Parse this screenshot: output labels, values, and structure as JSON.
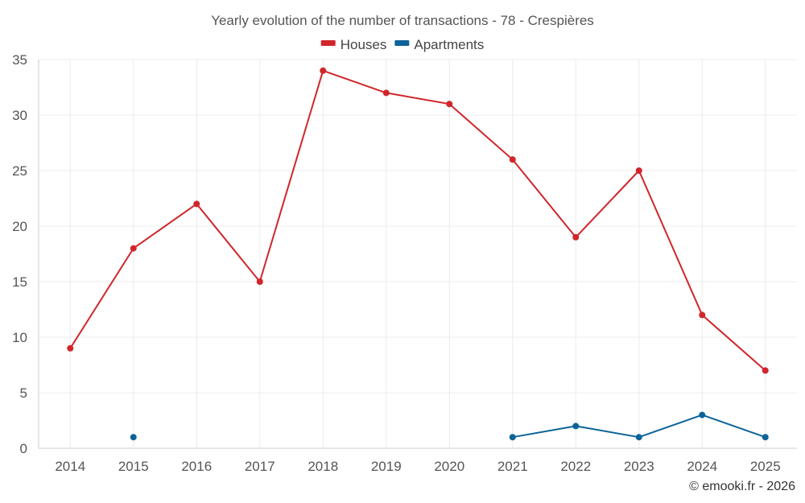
{
  "chart_data": {
    "type": "line",
    "title": "Yearly evolution of the number of transactions - 78 - Crespières",
    "categories": [
      "2014",
      "2015",
      "2016",
      "2017",
      "2018",
      "2019",
      "2020",
      "2021",
      "2022",
      "2023",
      "2024",
      "2025"
    ],
    "series": [
      {
        "name": "Houses",
        "color": "#d0262b",
        "values": [
          9,
          18,
          22,
          15,
          34,
          32,
          31,
          26,
          19,
          25,
          12,
          7
        ]
      },
      {
        "name": "Apartments",
        "color": "#0c6399",
        "values": [
          null,
          1,
          null,
          null,
          null,
          null,
          null,
          1,
          2,
          1,
          3,
          1
        ]
      }
    ],
    "ylim": [
      0,
      35
    ],
    "yticks": [
      0,
      5,
      10,
      15,
      20,
      25,
      30,
      35
    ],
    "xlabel": "",
    "ylabel": "",
    "grid": true,
    "legend_position": "top-center"
  },
  "credit": "© emooki.fr - 2026"
}
